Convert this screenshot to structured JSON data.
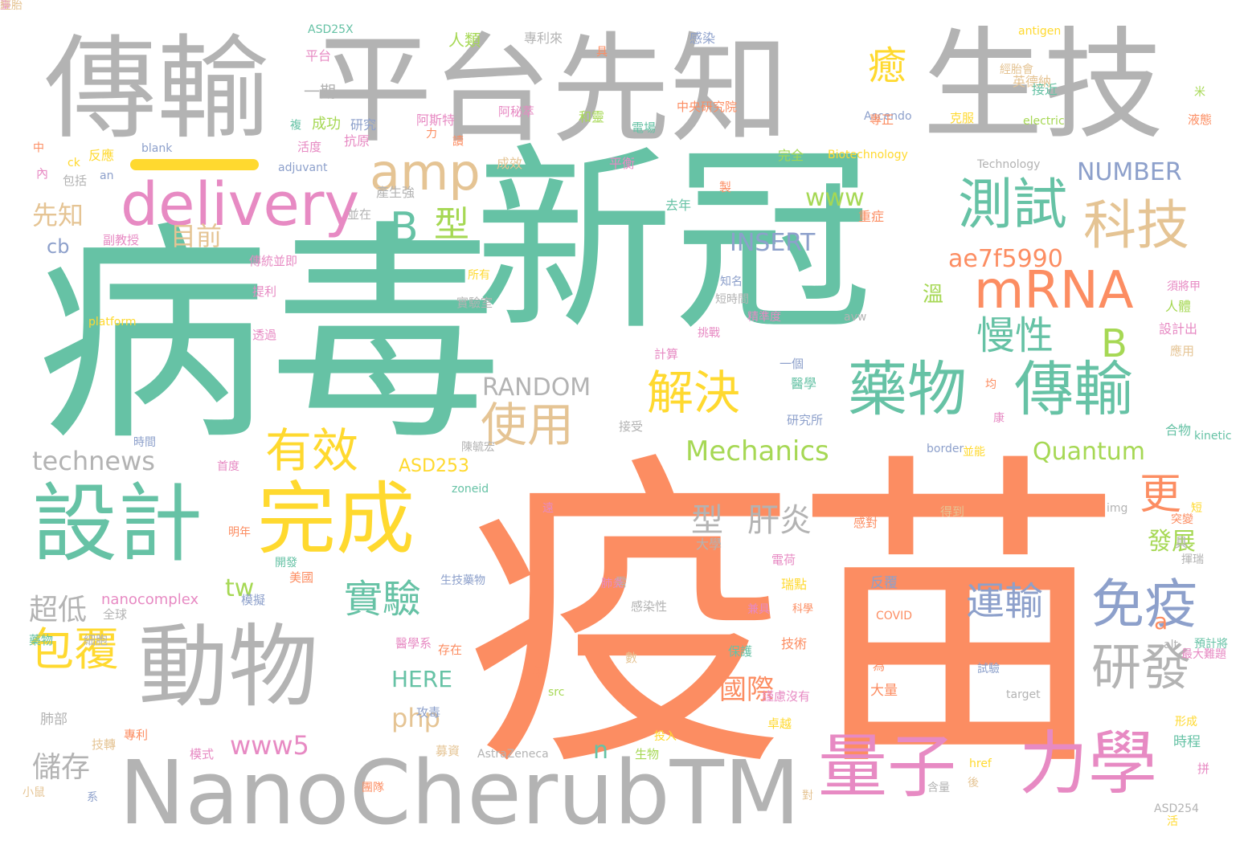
{
  "palette": {
    "teal": "#66c2a5",
    "orange": "#fc8d62",
    "gray": "#b3b3b3",
    "blue": "#8da0cb",
    "pink": "#e78ac3",
    "green": "#a6d854",
    "yellow": "#ffd92f",
    "tan": "#e5c494"
  },
  "words": [
    {
      "text": "疫苗",
      "color": "orange"
    },
    {
      "text": "病毒",
      "color": "teal"
    },
    {
      "text": "新冠",
      "color": "teal"
    },
    {
      "text": "平台先知",
      "color": "gray"
    },
    {
      "text": "傳輸",
      "color": "gray"
    },
    {
      "text": "生技",
      "color": "gray"
    },
    {
      "text": "NanoCherubTM",
      "color": "gray"
    },
    {
      "text": "動物",
      "color": "gray"
    },
    {
      "text": "設計",
      "color": "teal"
    },
    {
      "text": "完成",
      "color": "yellow"
    },
    {
      "text": "量子",
      "color": "pink"
    },
    {
      "text": "力學",
      "color": "pink"
    },
    {
      "text": "delivery",
      "color": "pink"
    },
    {
      "text": "amp",
      "color": "tan"
    },
    {
      "text": "mRNA",
      "color": "orange"
    },
    {
      "text": "藥物",
      "color": "teal"
    },
    {
      "text": "傳輸",
      "color": "teal"
    },
    {
      "text": "測試",
      "color": "teal"
    },
    {
      "text": "科技",
      "color": "tan"
    },
    {
      "text": "免疫",
      "color": "blue"
    },
    {
      "text": "研發",
      "color": "gray"
    },
    {
      "text": "使用",
      "color": "tan"
    },
    {
      "text": "有效",
      "color": "yellow"
    },
    {
      "text": "解決",
      "color": "yellow"
    },
    {
      "text": "包覆",
      "color": "yellow"
    },
    {
      "text": "實驗",
      "color": "teal"
    },
    {
      "text": "運輸",
      "color": "blue"
    },
    {
      "text": "慢性",
      "color": "teal"
    },
    {
      "text": "更",
      "color": "orange"
    },
    {
      "text": "B",
      "color": "teal"
    },
    {
      "text": "型",
      "color": "green"
    },
    {
      "text": "癒",
      "color": "yellow"
    },
    {
      "text": "B",
      "color": "green"
    },
    {
      "text": "Mechanics",
      "color": "green"
    },
    {
      "text": "Quantum",
      "color": "green"
    },
    {
      "text": "RANDOM",
      "color": "gray"
    },
    {
      "text": "technews",
      "color": "gray"
    },
    {
      "text": "NUMBER",
      "color": "blue"
    },
    {
      "text": "INSERT",
      "color": "blue"
    },
    {
      "text": "www",
      "color": "green"
    },
    {
      "text": "ae7f5990",
      "color": "orange"
    },
    {
      "text": "型",
      "color": "gray"
    },
    {
      "text": "肝炎",
      "color": "gray"
    },
    {
      "text": "先知",
      "color": "tan"
    },
    {
      "text": "目前",
      "color": "tan"
    },
    {
      "text": "cb",
      "color": "blue"
    },
    {
      "text": "超低",
      "color": "gray"
    },
    {
      "text": "儲存",
      "color": "gray"
    },
    {
      "text": "www5",
      "color": "pink"
    },
    {
      "text": "php",
      "color": "tan"
    },
    {
      "text": "HERE",
      "color": "teal"
    },
    {
      "text": "國際",
      "color": "orange"
    },
    {
      "text": "發展",
      "color": "green"
    },
    {
      "text": "tw",
      "color": "green"
    },
    {
      "text": "溫",
      "color": "green"
    },
    {
      "text": "n",
      "color": "teal"
    },
    {
      "text": "a",
      "color": "orange"
    },
    {
      "text": "ASD253",
      "color": "yellow"
    },
    {
      "text": "nanocomplex",
      "color": "pink"
    },
    {
      "text": "ASD25X",
      "color": "teal"
    },
    {
      "text": "ASD254",
      "color": "gray"
    },
    {
      "text": "AstraZeneca",
      "color": "gray"
    },
    {
      "text": "Biotechnology",
      "color": "yellow"
    },
    {
      "text": "Technology",
      "color": "gray"
    },
    {
      "text": "adjuvant",
      "color": "blue"
    },
    {
      "text": "platform",
      "color": "yellow"
    },
    {
      "text": "antigen",
      "color": "yellow"
    },
    {
      "text": "electric",
      "color": "green"
    },
    {
      "text": "Ascendo",
      "color": "blue"
    },
    {
      "text": "kinetic",
      "color": "teal"
    },
    {
      "text": "COVID",
      "color": "orange"
    },
    {
      "text": "zoneid",
      "color": "teal"
    },
    {
      "text": "border",
      "color": "blue"
    },
    {
      "text": "blank",
      "color": "blue"
    },
    {
      "text": "target",
      "color": "gray"
    },
    {
      "text": "href",
      "color": "yellow"
    },
    {
      "text": "src",
      "color": "green"
    },
    {
      "text": "img",
      "color": "gray"
    },
    {
      "text": "alt",
      "color": "gray"
    },
    {
      "text": "avw",
      "color": "gray"
    },
    {
      "text": "ck",
      "color": "yellow"
    },
    {
      "text": "an",
      "color": "blue"
    },
    {
      "text": "中央研究院",
      "color": "orange"
    },
    {
      "text": "人類",
      "color": "green"
    },
    {
      "text": "專利來",
      "color": "gray"
    },
    {
      "text": "感染",
      "color": "blue"
    },
    {
      "text": "平台",
      "color": "pink"
    },
    {
      "text": "具",
      "color": "orange"
    },
    {
      "text": "經胎會",
      "color": "tan"
    },
    {
      "text": "英德納",
      "color": "tan"
    },
    {
      "text": "一期",
      "color": "gray"
    },
    {
      "text": "接近",
      "color": "teal"
    },
    {
      "text": "米",
      "color": "green"
    },
    {
      "text": "成功",
      "color": "green"
    },
    {
      "text": "研究",
      "color": "blue"
    },
    {
      "text": "阿斯特",
      "color": "pink"
    },
    {
      "text": "阿秘萃",
      "color": "pink"
    },
    {
      "text": "和靈",
      "color": "green"
    },
    {
      "text": "專正",
      "color": "orange"
    },
    {
      "text": "液態",
      "color": "orange"
    },
    {
      "text": "克服",
      "color": "yellow"
    },
    {
      "text": "複",
      "color": "teal"
    },
    {
      "text": "力",
      "color": "orange"
    },
    {
      "text": "讀",
      "color": "orange"
    },
    {
      "text": "活度",
      "color": "pink"
    },
    {
      "text": "抗原",
      "color": "pink"
    },
    {
      "text": "電場",
      "color": "teal"
    },
    {
      "text": "反應",
      "color": "yellow"
    },
    {
      "text": "中",
      "color": "orange"
    },
    {
      "text": "內",
      "color": "pink"
    },
    {
      "text": "包括",
      "color": "gray"
    },
    {
      "text": "成效",
      "color": "tan"
    },
    {
      "text": "平衡",
      "color": "pink"
    },
    {
      "text": "完全",
      "color": "green"
    },
    {
      "text": "製",
      "color": "orange"
    },
    {
      "text": "產生強",
      "color": "gray"
    },
    {
      "text": "並在",
      "color": "gray"
    },
    {
      "text": "去年",
      "color": "teal"
    },
    {
      "text": "重症",
      "color": "orange"
    },
    {
      "text": "副教授",
      "color": "pink"
    },
    {
      "text": "傳統",
      "color": "pink"
    },
    {
      "text": "並即",
      "color": "pink"
    },
    {
      "text": "所有",
      "color": "yellow"
    },
    {
      "text": "知名",
      "color": "blue"
    },
    {
      "text": "短時間",
      "color": "gray"
    },
    {
      "text": "精準度",
      "color": "pink"
    },
    {
      "text": "挑戰",
      "color": "pink"
    },
    {
      "text": "提利",
      "color": "pink"
    },
    {
      "text": "實驗室",
      "color": "gray"
    },
    {
      "text": "透過",
      "color": "pink"
    },
    {
      "text": "須將甲",
      "color": "pink"
    },
    {
      "text": "人體",
      "color": "green"
    },
    {
      "text": "設計出",
      "color": "pink"
    },
    {
      "text": "應用",
      "color": "tan"
    },
    {
      "text": "計算",
      "color": "pink"
    },
    {
      "text": "一個",
      "color": "blue"
    },
    {
      "text": "醫學",
      "color": "teal"
    },
    {
      "text": "均",
      "color": "orange"
    },
    {
      "text": "康",
      "color": "pink"
    },
    {
      "text": "研究所",
      "color": "blue"
    },
    {
      "text": "合物",
      "color": "teal"
    },
    {
      "text": "接受",
      "color": "gray"
    },
    {
      "text": "時間",
      "color": "blue"
    },
    {
      "text": "陳毓宏",
      "color": "gray"
    },
    {
      "text": "首度",
      "color": "pink"
    },
    {
      "text": "並能",
      "color": "yellow"
    },
    {
      "text": "遠",
      "color": "pink"
    },
    {
      "text": "感對",
      "color": "orange"
    },
    {
      "text": "得到",
      "color": "tan"
    },
    {
      "text": "突變",
      "color": "orange"
    },
    {
      "text": "短",
      "color": "yellow"
    },
    {
      "text": "具",
      "color": "gray"
    },
    {
      "text": "揮瑞",
      "color": "gray"
    },
    {
      "text": "明年",
      "color": "orange"
    },
    {
      "text": "大學",
      "color": "gray"
    },
    {
      "text": "電荷",
      "color": "pink"
    },
    {
      "text": "需",
      "color": "gray"
    },
    {
      "text": "肺炎",
      "color": "pink"
    },
    {
      "text": "反覆",
      "color": "blue"
    },
    {
      "text": "瑞點",
      "color": "yellow"
    },
    {
      "text": "開發",
      "color": "teal"
    },
    {
      "text": "美國",
      "color": "orange"
    },
    {
      "text": "生技藥物",
      "color": "blue"
    },
    {
      "text": "模擬",
      "color": "blue"
    },
    {
      "text": "感染性",
      "color": "gray"
    },
    {
      "text": "兼具",
      "color": "pink"
    },
    {
      "text": "科學",
      "color": "orange"
    },
    {
      "text": "全球",
      "color": "gray"
    },
    {
      "text": "細胞",
      "color": "gray"
    },
    {
      "text": "藥物",
      "color": "teal"
    },
    {
      "text": "醫學系",
      "color": "pink"
    },
    {
      "text": "存在",
      "color": "orange"
    },
    {
      "text": "數",
      "color": "tan"
    },
    {
      "text": "技術",
      "color": "orange"
    },
    {
      "text": "保護",
      "color": "teal"
    },
    {
      "text": "為",
      "color": "orange"
    },
    {
      "text": "大量",
      "color": "orange"
    },
    {
      "text": "試驗",
      "color": "blue"
    },
    {
      "text": "預計將",
      "color": "teal"
    },
    {
      "text": "最大難題",
      "color": "pink"
    },
    {
      "text": "年",
      "color": "orange"
    },
    {
      "text": "肺部",
      "color": "gray"
    },
    {
      "text": "技轉",
      "color": "tan"
    },
    {
      "text": "攻毒",
      "color": "blue"
    },
    {
      "text": "專利",
      "color": "orange"
    },
    {
      "text": "卓越",
      "color": "yellow"
    },
    {
      "text": "謹慮沒有",
      "color": "pink"
    },
    {
      "text": "形成",
      "color": "yellow"
    },
    {
      "text": "時程",
      "color": "teal"
    },
    {
      "text": "模式",
      "color": "pink"
    },
    {
      "text": "募資",
      "color": "tan"
    },
    {
      "text": "生物",
      "color": "green"
    },
    {
      "text": "投入",
      "color": "yellow"
    },
    {
      "text": "拼",
      "color": "pink"
    },
    {
      "text": "團隊",
      "color": "orange"
    },
    {
      "text": "後",
      "color": "tan"
    },
    {
      "text": "含量",
      "color": "gray"
    },
    {
      "text": "小鼠",
      "color": "tan"
    },
    {
      "text": "系",
      "color": "blue"
    },
    {
      "text": "對",
      "color": "tan"
    },
    {
      "text": "活",
      "color": "yellow"
    },
    {
      "text": "臺",
      "color": "pink"
    },
    {
      "text": "經胎",
      "color": "tan"
    }
  ]
}
